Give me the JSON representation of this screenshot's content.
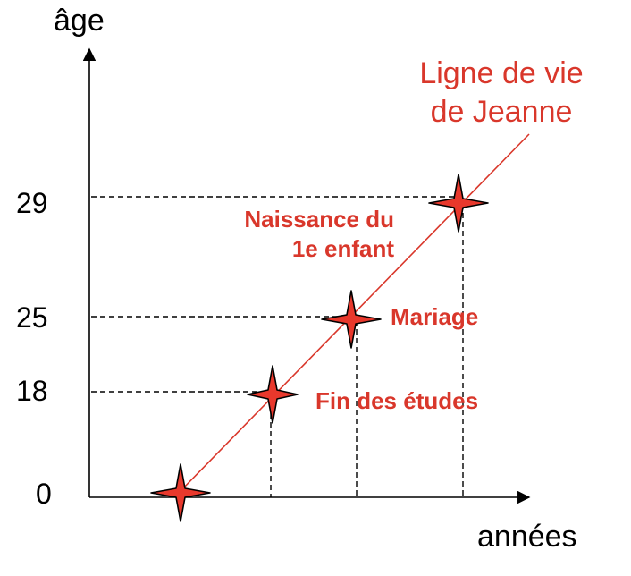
{
  "colors": {
    "accent": "#d9372b",
    "axis": "#000000"
  },
  "axes": {
    "y_label": "âge",
    "x_label": "années"
  },
  "y_ticks": [
    "29",
    "25",
    "18",
    "0"
  ],
  "lifeline": {
    "line1": "Ligne de vie",
    "line2": "de Jeanne"
  },
  "events": {
    "child": {
      "line1": "Naissance du",
      "line2": "1e enfant"
    },
    "marriage": {
      "label": "Mariage"
    },
    "studies": {
      "label": "Fin des études"
    }
  }
}
